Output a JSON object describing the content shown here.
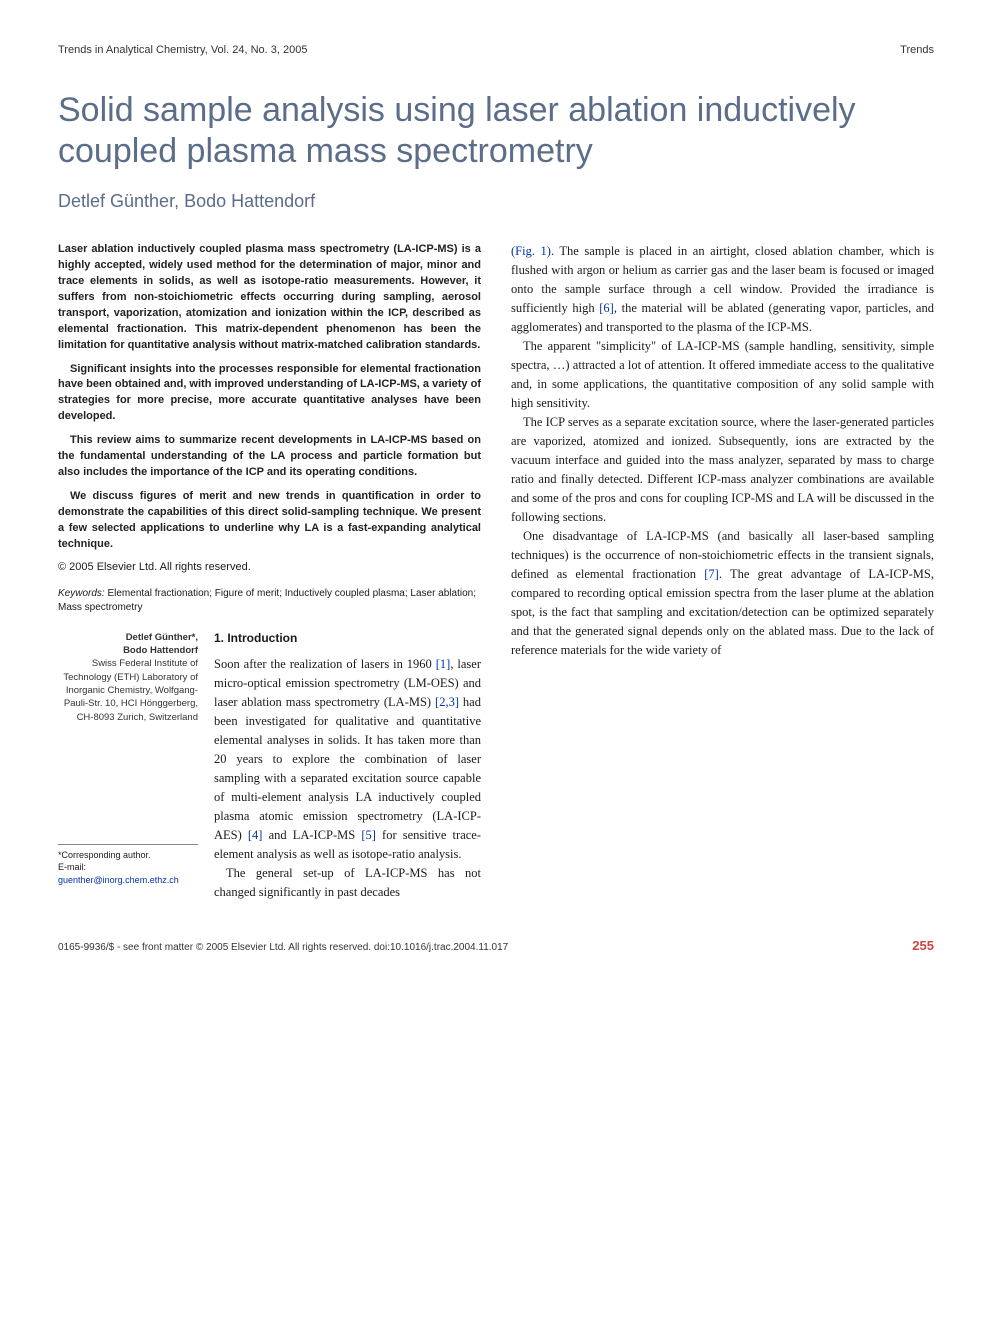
{
  "header": {
    "journal": "Trends in Analytical Chemistry, Vol. 24, No. 3, 2005",
    "section": "Trends"
  },
  "title": "Solid sample analysis using laser ablation inductively coupled plasma mass spectrometry",
  "authors": "Detlef Günther, Bodo Hattendorf",
  "abstract": {
    "p1": "Laser ablation inductively coupled plasma mass spectrometry (LA-ICP-MS) is a highly accepted, widely used method for the determination of major, minor and trace elements in solids, as well as isotope-ratio measurements. However, it suffers from non-stoichiometric effects occurring during sampling, aerosol transport, vaporization, atomization and ionization within the ICP, described as elemental fractionation. This matrix-dependent phenomenon has been the limitation for quantitative analysis without matrix-matched calibration standards.",
    "p2": "Significant insights into the processes responsible for elemental fractionation have been obtained and, with improved understanding of LA-ICP-MS, a variety of strategies for more precise, more accurate quantitative analyses have been developed.",
    "p3": "This review aims to summarize recent developments in LA-ICP-MS based on the fundamental understanding of the LA process and particle formation but also includes the importance of the ICP and its operating conditions.",
    "p4": "We discuss figures of merit and new trends in quantification in order to demonstrate the capabilities of this direct solid-sampling technique. We present a few selected applications to underline why LA is a fast-expanding analytical technique."
  },
  "copyright": "© 2005 Elsevier Ltd. All rights reserved.",
  "keywords": {
    "label": "Keywords:",
    "text": "Elemental fractionation; Figure of merit; Inductively coupled plasma; Laser ablation; Mass spectrometry"
  },
  "affiliation": {
    "name1": "Detlef Günther*,",
    "name2": "Bodo Hattendorf",
    "inst": "Swiss Federal Institute of Technology (ETH) Laboratory of Inorganic Chemistry, Wolfgang-Pauli-Str. 10, HCI Hönggerberg, CH-8093 Zurich, Switzerland"
  },
  "corresponding": {
    "label": "*Corresponding author.",
    "email_label": "E-mail:",
    "email": "guenther@inorg.chem.ethz.ch"
  },
  "section1": {
    "heading": "1. Introduction",
    "p1a": "Soon after the realization of lasers in 1960 ",
    "r1": "[1]",
    "p1b": ", laser micro-optical emission spectrometry (LM-OES) and laser ablation mass spectrometry (LA-MS) ",
    "r23": "[2,3]",
    "p1c": " had been investigated for qualitative and quantitative elemental analyses in solids. It has taken more than 20 years to explore the combination of laser sampling with a separated excitation source capable of multi-element analysis LA inductively coupled plasma atomic emission spectrometry (LA-ICP-AES) ",
    "r4": "[4]",
    "p1d": " and LA-ICP-MS ",
    "r5": "[5]",
    "p1e": " for sensitive trace-element analysis as well as isotope-ratio analysis.",
    "p2": "The general set-up of LA-ICP-MS has not changed significantly in past decades"
  },
  "rightcol": {
    "p1a": "(Fig. 1)",
    "p1b": ". The sample is placed in an airtight, closed ablation chamber, which is flushed with argon or helium as carrier gas and the laser beam is focused or imaged onto the sample surface through a cell window. Provided the irradiance is sufficiently high ",
    "r6": "[6]",
    "p1c": ", the material will be ablated (generating vapor, particles, and agglomerates) and transported to the plasma of the ICP-MS.",
    "p2": "The apparent \"simplicity\" of LA-ICP-MS (sample handling, sensitivity, simple spectra, …) attracted a lot of attention. It offered immediate access to the qualitative and, in some applications, the quantitative composition of any solid sample with high sensitivity.",
    "p3": "The ICP serves as a separate excitation source, where the laser-generated particles are vaporized, atomized and ionized. Subsequently, ions are extracted by the vacuum interface and guided into the mass analyzer, separated by mass to charge ratio and finally detected. Different ICP-mass analyzer combinations are available and some of the pros and cons for coupling ICP-MS and LA will be discussed in the following sections.",
    "p4a": "One disadvantage of LA-ICP-MS (and basically all laser-based sampling techniques) is the occurrence of non-stoichiometric effects in the transient signals, defined as elemental fractionation ",
    "r7": "[7]",
    "p4b": ". The great advantage of LA-ICP-MS, compared to recording optical emission spectra from the laser plume at the ablation spot, is the fact that sampling and excitation/detection can be optimized separately and that the generated signal depends only on the ablated mass. Due to the lack of reference materials for the wide variety of"
  },
  "footer": {
    "left": "0165-9936/$ - see front matter © 2005 Elsevier Ltd. All rights reserved. doi:10.1016/j.trac.2004.11.017",
    "page": "255"
  },
  "colors": {
    "heading_blue": "#5b6d88",
    "link_blue": "#0033aa",
    "page_red": "#c44444",
    "text": "#1a1a1a",
    "background": "#ffffff"
  }
}
